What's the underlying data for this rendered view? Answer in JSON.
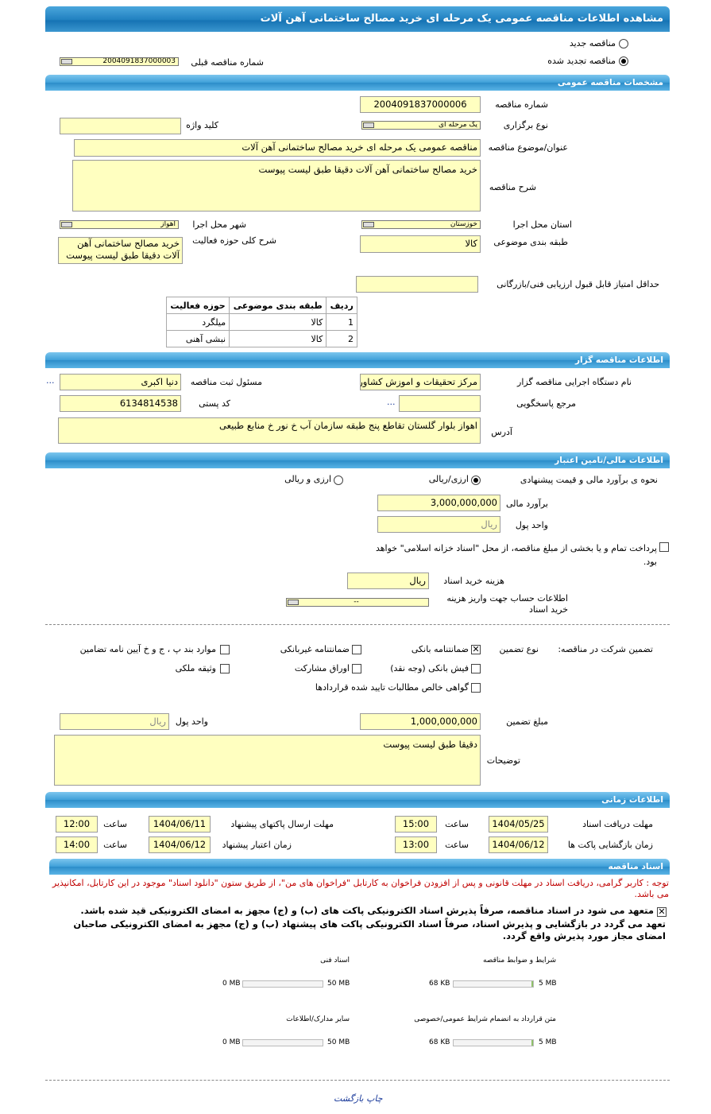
{
  "title": "مشاهده اطلاعات مناقصه عمومی یک مرحله ای خرید مصالح ساختمانی آهن آلات",
  "tender_type": {
    "new_label": "مناقصه جدید",
    "renewed_label": "مناقصه تجدید شده",
    "selected": "renewed",
    "prev_number_label": "شماره مناقصه قبلی",
    "prev_number": "2004091837000003"
  },
  "general": {
    "section": "مشخصات مناقصه عمومی",
    "number_label": "شماره مناقصه",
    "number": "2004091837000006",
    "holding_type_label": "نوع برگزاری",
    "holding_type": "یک مرحله ای",
    "keyword_label": "کلید واژه",
    "keyword": "",
    "subject_label": "عنوان/موضوع مناقصه",
    "subject": "مناقصه عمومی یک مرحله ای خرید مصالح ساختمانی آهن آلات",
    "description_label": "شرح مناقصه",
    "description": "خرید مصالح ساختمانی آهن آلات دقیقا طبق لیست پیوست",
    "province_label": "استان محل اجرا",
    "province": "خوزستان",
    "city_label": "شهر محل اجرا",
    "city": "اهواز",
    "category_label": "طبقه بندی موضوعی",
    "category": "کالا",
    "scope_label": "شرح کلی حوزه فعالیت",
    "scope": "خرید مصالح ساختمانی آهن آلات دقیقا طبق لیست پیوست",
    "min_score_label": "حداقل امتیاز قابل قبول ارزیابی فنی/بازرگانی",
    "min_score": "",
    "table": {
      "headers": [
        "ردیف",
        "طبقه بندی موضوعی",
        "حوزه فعالیت"
      ],
      "rows": [
        [
          "1",
          "کالا",
          "میلگرد"
        ],
        [
          "2",
          "کالا",
          "نبشی آهنی"
        ]
      ]
    }
  },
  "organizer": {
    "section": "اطلاعات مناقصه گزار",
    "org_label": "نام دستگاه اجرایی مناقصه گزار",
    "org": "مرکز تحقیقات و اموزش کشاور",
    "more": "...",
    "registrar_label": "مسئول ثبت مناقصه",
    "registrar": "دنیا اکبری",
    "reference_label": "مرجع پاسخگویی",
    "reference": "",
    "reference_more": "...",
    "postal_label": "کد پستی",
    "postal": "6134814538",
    "address_label": "آدرس",
    "address": "اهواز بلوار گلستان تقاطع پنج طبقه سازمان آب خ نور خ منابع طبیعی"
  },
  "finance": {
    "section": "اطلاعات مالی/تامین اعتبار",
    "method_label": "نحوه ی برآورد مالی و قیمت پیشنهادی",
    "opt_rial": "ارزی/ریالی",
    "opt_both": "ارزی و ریالی",
    "selected": "rial",
    "estimate_label": "برآورد مالی",
    "estimate": "3,000,000,000",
    "currency_label": "واحد پول",
    "currency": "ریال",
    "treasury_text": "پرداخت تمام و یا بخشی از مبلغ مناقصه، از محل \"اسناد خزانه اسلامی\" خواهد بود.",
    "doc_fee_label": "هزینه خرید اسناد",
    "doc_fee": "ریال",
    "account_label": "اطلاعات حساب جهت واریز هزینه خرید اسناد",
    "account": "--"
  },
  "guarantee": {
    "label": "تضمین شرکت در مناقصه:",
    "type_label": "نوع تضمین",
    "options": [
      {
        "label": "ضمانتنامه بانکی",
        "checked": true
      },
      {
        "label": "ضمانتنامه غیربانکی",
        "checked": false
      },
      {
        "label": "موارد بند پ ، ج و خ آیین نامه تضامین",
        "checked": false
      },
      {
        "label": "فیش بانکی (وجه نقد)",
        "checked": false
      },
      {
        "label": "اوراق مشارکت",
        "checked": false
      },
      {
        "label": "وثیقه ملکی",
        "checked": false
      },
      {
        "label": "گواهی خالص مطالبات تایید شده قراردادها",
        "checked": false
      }
    ],
    "amount_label": "مبلغ تضمین",
    "amount": "1,000,000,000",
    "currency_label": "واحد پول",
    "currency": "ریال",
    "notes_label": "توضیحات",
    "notes": "دقیقا طبق لیست پیوست"
  },
  "timing": {
    "section": "اطلاعات زمانی",
    "time_label": "ساعت",
    "receive_label": "مهلت دریافت اسناد",
    "receive_date": "1404/05/25",
    "receive_time": "15:00",
    "send_label": "مهلت ارسال پاکتهای پیشنهاد",
    "send_date": "1404/06/11",
    "send_time": "12:00",
    "open_label": "زمان بازگشایی پاکت ها",
    "open_date": "1404/06/12",
    "open_time": "13:00",
    "validity_label": "زمان اعتبار پیشنهاد",
    "validity_date": "1404/06/12",
    "validity_time": "14:00"
  },
  "docs": {
    "section": "اسناد مناقصه",
    "notice": "توجه : کاربر گرامی، دریافت اسناد در مهلت قانونی و پس از افزودن فراخوان به کارتابل \"فراخوان های من\"، از طریق ستون \"دانلود اسناد\" موجود در این کارتابل، امکانپذیر می باشد.",
    "commit1": "متعهد می شود در اسناد مناقصه، صرفاً پذیرش اسناد الکترونیکی پاکت های (ب) و (ج) مجهز به امضای الکترونیکی قید شده باشد.",
    "commit2": "تعهد می گردد در بازگشایی و پذیرش اسناد، صرفاً اسناد الکترونیکی پاکت های پیشنهاد (ب) و (ج) مجهز به امضای الکترونیکی صاحبان امضای مجاز مورد پذیرش واقع گردد.",
    "files": [
      {
        "label": "شرایط و ضوابط مناقصه",
        "size": "68 KB",
        "max": "5 MB",
        "fill": 0.013
      },
      {
        "label": "اسناد فنی",
        "size": "0 MB",
        "max": "50 MB",
        "fill": 0
      },
      {
        "label": "متن قرارداد به انضمام شرایط عمومی/خصوصی",
        "size": "68 KB",
        "max": "5 MB",
        "fill": 0.013
      },
      {
        "label": "سایر مدارک/اطلاعات",
        "size": "0 MB",
        "max": "50 MB",
        "fill": 0
      }
    ]
  },
  "footer": {
    "print": "چاپ",
    "back": "بازگشت"
  },
  "colors": {
    "header": "#2b8cc9",
    "field": "#ffffc0",
    "notice": "#c00000",
    "link": "#1a3a9a"
  }
}
